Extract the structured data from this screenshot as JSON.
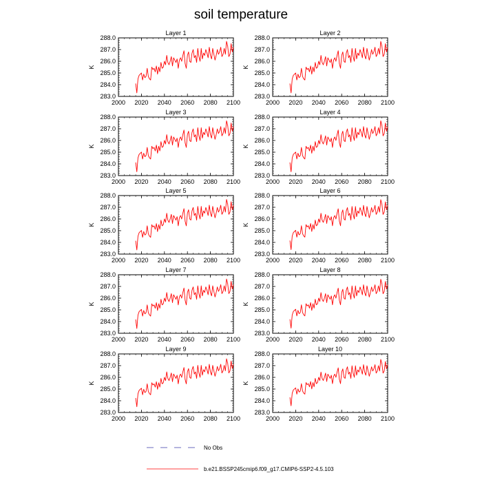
{
  "chart_data": {
    "type": "line",
    "title": "soil temperature",
    "ylabel": "K",
    "xlim": [
      2000,
      2100
    ],
    "ylim": [
      283.0,
      288.0
    ],
    "xticks": [
      "2000",
      "2020",
      "2040",
      "2060",
      "2080",
      "2100"
    ],
    "yticks": [
      "283.0",
      "284.0",
      "285.0",
      "286.0",
      "287.0",
      "288.0"
    ],
    "x_start_year": 2015,
    "x_end_year": 2100,
    "base_series": [
      284.1,
      283.3,
      284.5,
      284.8,
      284.9,
      285.0,
      284.4,
      284.9,
      284.6,
      284.7,
      285.4,
      284.7,
      284.5,
      284.4,
      285.5,
      285.3,
      285.4,
      285.1,
      285.6,
      284.9,
      285.5,
      285.1,
      285.9,
      285.4,
      285.5,
      286.0,
      285.7,
      286.5,
      285.9,
      285.7,
      286.0,
      286.4,
      285.6,
      286.3,
      286.1,
      285.9,
      286.2,
      285.4,
      286.1,
      286.3,
      286.0,
      286.5,
      286.9,
      285.8,
      285.4,
      286.5,
      286.8,
      286.0,
      285.9,
      286.7,
      287.0,
      286.3,
      286.5,
      285.9,
      287.1,
      286.4,
      286.0,
      287.1,
      286.2,
      286.7,
      286.5,
      287.0,
      286.7,
      286.3,
      287.2,
      286.5,
      286.2,
      287.1,
      286.6,
      286.1,
      286.5,
      287.0,
      286.6,
      286.8,
      287.2,
      286.4,
      286.6,
      287.1,
      286.6,
      287.7,
      287.3,
      286.4,
      286.6,
      287.5,
      286.8,
      287.2
    ],
    "panels": [
      {
        "title": "Layer 1",
        "offset": 0.0,
        "scale": 1.0
      },
      {
        "title": "Layer 2",
        "offset": 0.0,
        "scale": 1.0
      },
      {
        "title": "Layer 3",
        "offset": 0.0,
        "scale": 0.99
      },
      {
        "title": "Layer 4",
        "offset": 0.0,
        "scale": 0.99
      },
      {
        "title": "Layer 5",
        "offset": 0.0,
        "scale": 0.98
      },
      {
        "title": "Layer 6",
        "offset": 0.0,
        "scale": 0.97
      },
      {
        "title": "Layer 7",
        "offset": 0.0,
        "scale": 0.96
      },
      {
        "title": "Layer 8",
        "offset": 0.0,
        "scale": 0.95
      },
      {
        "title": "Layer 9",
        "offset": 0.0,
        "scale": 0.93
      },
      {
        "title": "Layer 10",
        "offset": 0.0,
        "scale": 0.9
      }
    ],
    "legend": [
      {
        "label": "No Obs",
        "style": "dashed",
        "color": "#3a3aa8"
      },
      {
        "label": "b.e21.BSSP245cmip6.f09_g17.CMIP6-SSP2-4.5.103",
        "style": "solid",
        "color": "#ff0000"
      }
    ],
    "series_color": "#ff0000"
  }
}
